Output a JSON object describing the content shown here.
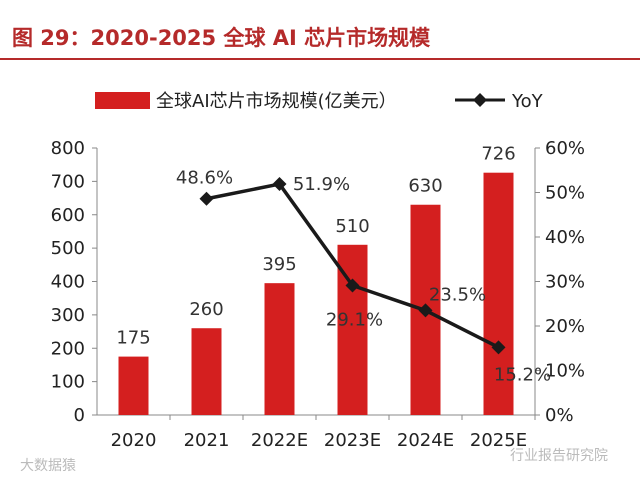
{
  "title": "图 29：2020-2025 全球 AI 芯片市场规模",
  "watermarks": [
    "大数据猿",
    "行业报告研究院"
  ],
  "colors": {
    "bar": "#d41f1f",
    "line": "#1a1a1a",
    "title": "#b52a2a"
  },
  "chart_data": {
    "type": "bar",
    "categories": [
      "2020",
      "2021",
      "2022E",
      "2023E",
      "2024E",
      "2025E"
    ],
    "series": [
      {
        "name": "全球AI芯片市场规模(亿美元）",
        "type": "bar",
        "axis": "left",
        "values": [
          175,
          260,
          395,
          510,
          630,
          726
        ],
        "labels": [
          "175",
          "260",
          "395",
          "510",
          "630",
          "726"
        ]
      },
      {
        "name": "YoY",
        "type": "line",
        "axis": "right",
        "values": [
          null,
          48.6,
          51.9,
          29.1,
          23.5,
          15.2
        ],
        "labels": [
          "",
          "48.6%",
          "51.9%",
          "29.1%",
          "23.5%",
          "15.2%"
        ]
      }
    ],
    "y_left": {
      "min": 0,
      "max": 800,
      "ticks": [
        "0",
        "100",
        "200",
        "300",
        "400",
        "500",
        "600",
        "700",
        "800"
      ]
    },
    "y_right": {
      "min": 0,
      "max": 60,
      "ticks": [
        "0%",
        "10%",
        "20%",
        "30%",
        "40%",
        "50%",
        "60%"
      ]
    },
    "legend_position": "top"
  }
}
